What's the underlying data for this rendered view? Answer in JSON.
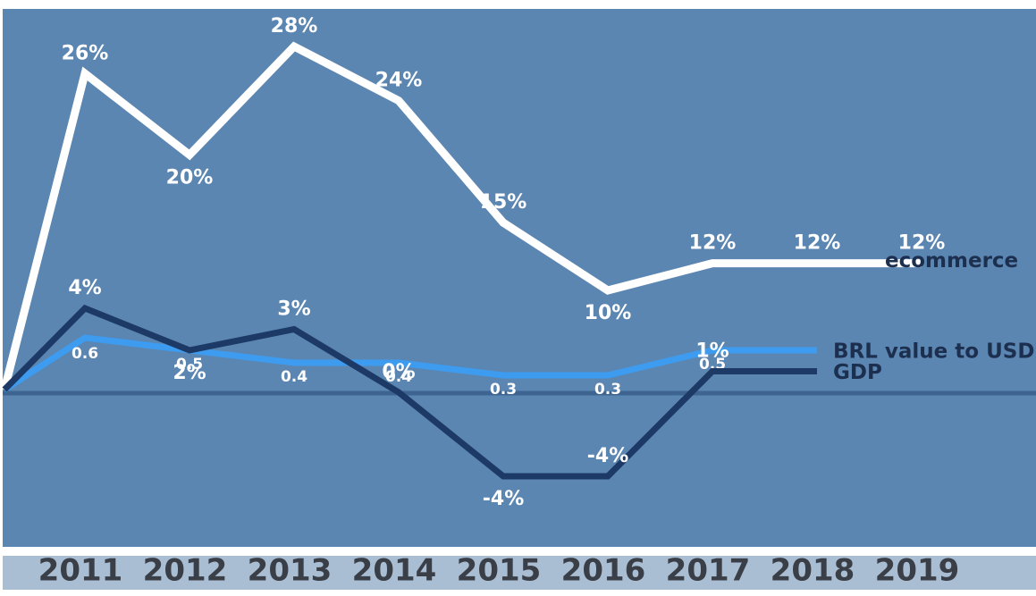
{
  "chart_data": {
    "type": "line",
    "categories": [
      "2011",
      "2012",
      "2013",
      "2014",
      "2015",
      "2016",
      "2017",
      "2018",
      "2019"
    ],
    "series": [
      {
        "name": "ecommerce",
        "color": "#ffffff",
        "values": [
          26,
          20,
          28,
          24,
          15,
          10,
          12,
          12,
          12
        ],
        "value_labels": [
          "26%",
          "20%",
          "28%",
          "24%",
          "15%",
          "10%",
          "12%",
          "12%",
          "12%"
        ]
      },
      {
        "name": "BRL value to USD",
        "color": "#3d9cf0",
        "values": [
          0.6,
          0.5,
          0.4,
          0.4,
          0.3,
          0.3,
          0.5,
          0.5,
          null
        ],
        "value_labels": [
          "0.6",
          "0.5",
          "0.4",
          "0.4",
          "0.3",
          "0.3",
          "0.5",
          null,
          null
        ]
      },
      {
        "name": "GDP",
        "color": "#1d3a66",
        "values": [
          4,
          2,
          3,
          0,
          -4,
          -4,
          1,
          1,
          null
        ],
        "value_labels": [
          "4%",
          "2%",
          "3%",
          "0%",
          "-4%",
          "-4%",
          "1%",
          null,
          null
        ]
      }
    ]
  }
}
